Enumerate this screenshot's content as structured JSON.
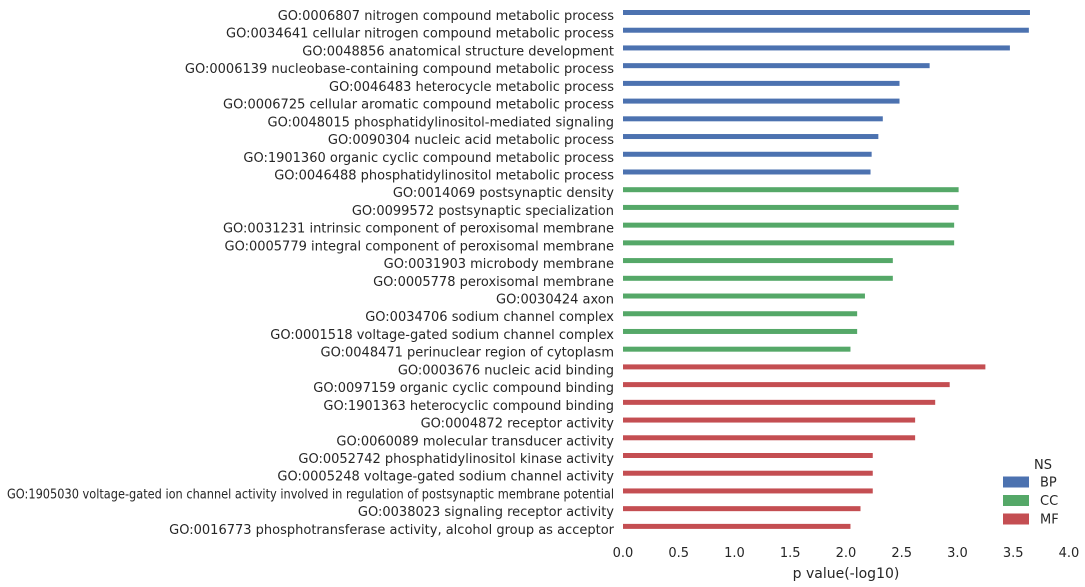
{
  "chart_data": {
    "type": "bar",
    "orientation": "horizontal",
    "xlabel": "p value(-log10)",
    "xlim": [
      0.0,
      4.0
    ],
    "xticks": [
      "0.0",
      "0.5",
      "1.0",
      "1.5",
      "2.0",
      "2.5",
      "3.0",
      "3.5",
      "4.0"
    ],
    "legend": {
      "title": "NS",
      "position": "bottom-right",
      "entries": [
        {
          "name": "BP",
          "color": "#4c72b0"
        },
        {
          "name": "CC",
          "color": "#55a868"
        },
        {
          "name": "MF",
          "color": "#c44e52"
        }
      ]
    },
    "categories": [
      {
        "label": "GO:0006807 nitrogen compound metabolic process",
        "ns": "BP",
        "value": 3.65
      },
      {
        "label": "GO:0034641 cellular nitrogen compound metabolic process",
        "ns": "BP",
        "value": 3.64
      },
      {
        "label": "GO:0048856 anatomical structure development",
        "ns": "BP",
        "value": 3.47
      },
      {
        "label": "GO:0006139 nucleobase-containing compound metabolic process",
        "ns": "BP",
        "value": 2.75
      },
      {
        "label": "GO:0046483 heterocycle metabolic process",
        "ns": "BP",
        "value": 2.48
      },
      {
        "label": "GO:0006725 cellular aromatic compound metabolic process",
        "ns": "BP",
        "value": 2.48
      },
      {
        "label": "GO:0048015 phosphatidylinositol-mediated signaling",
        "ns": "BP",
        "value": 2.33
      },
      {
        "label": "GO:0090304 nucleic acid metabolic process",
        "ns": "BP",
        "value": 2.29
      },
      {
        "label": "GO:1901360 organic cyclic compound metabolic process",
        "ns": "BP",
        "value": 2.23
      },
      {
        "label": "GO:0046488 phosphatidylinositol metabolic process",
        "ns": "BP",
        "value": 2.22
      },
      {
        "label": "GO:0014069 postsynaptic density",
        "ns": "CC",
        "value": 3.01
      },
      {
        "label": "GO:0099572 postsynaptic specialization",
        "ns": "CC",
        "value": 3.01
      },
      {
        "label": "GO:0031231 intrinsic component of peroxisomal membrane",
        "ns": "CC",
        "value": 2.97
      },
      {
        "label": "GO:0005779 integral component of peroxisomal membrane",
        "ns": "CC",
        "value": 2.97
      },
      {
        "label": "GO:0031903 microbody membrane",
        "ns": "CC",
        "value": 2.42
      },
      {
        "label": "GO:0005778 peroxisomal membrane",
        "ns": "CC",
        "value": 2.42
      },
      {
        "label": "GO:0030424 axon",
        "ns": "CC",
        "value": 2.17
      },
      {
        "label": "GO:0034706 sodium channel complex",
        "ns": "CC",
        "value": 2.1
      },
      {
        "label": "GO:0001518 voltage-gated sodium channel complex",
        "ns": "CC",
        "value": 2.1
      },
      {
        "label": "GO:0048471 perinuclear region of cytoplasm",
        "ns": "CC",
        "value": 2.04
      },
      {
        "label": "GO:0003676 nucleic acid binding",
        "ns": "MF",
        "value": 3.25
      },
      {
        "label": "GO:0097159 organic cyclic compound binding",
        "ns": "MF",
        "value": 2.93
      },
      {
        "label": "GO:1901363 heterocyclic compound binding",
        "ns": "MF",
        "value": 2.8
      },
      {
        "label": "GO:0004872 receptor activity",
        "ns": "MF",
        "value": 2.62
      },
      {
        "label": "GO:0060089 molecular transducer activity",
        "ns": "MF",
        "value": 2.62
      },
      {
        "label": "GO:0052742 phosphatidylinositol kinase activity",
        "ns": "MF",
        "value": 2.24
      },
      {
        "label": "GO:0005248 voltage-gated sodium channel activity",
        "ns": "MF",
        "value": 2.24
      },
      {
        "label": "GO:1905030 voltage-gated ion channel activity involved in regulation of postsynaptic membrane potential",
        "ns": "MF",
        "value": 2.24
      },
      {
        "label": "GO:0038023 signaling receptor activity",
        "ns": "MF",
        "value": 2.13
      },
      {
        "label": "GO:0016773 phosphotransferase activity, alcohol group as acceptor",
        "ns": "MF",
        "value": 2.04
      }
    ]
  }
}
